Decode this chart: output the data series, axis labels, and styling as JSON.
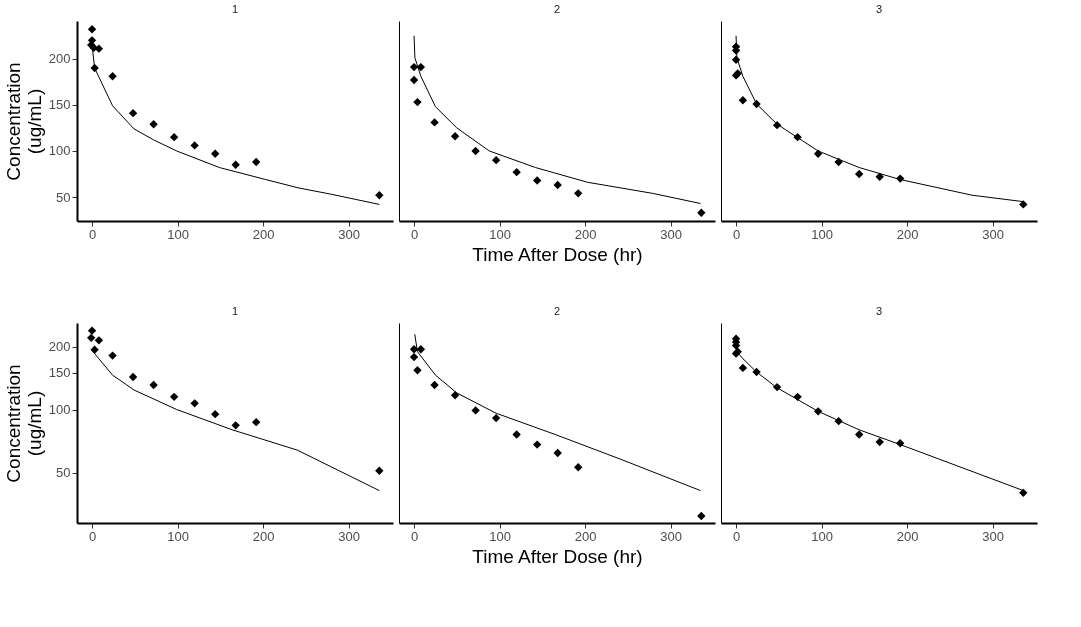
{
  "chart_data": [
    {
      "type": "scatter",
      "title": "1",
      "ylabel": "Concentration (ug/mL)",
      "xlim": [
        -17.6,
        352
      ],
      "xticks": [
        0,
        100,
        200,
        300
      ],
      "ylim": [
        24,
        241
      ],
      "yticks": [
        50,
        100,
        150,
        200
      ],
      "series": [
        {
          "marker": "diamond",
          "color": "#000000",
          "x": [
            0,
            0,
            -1,
            2,
            8,
            3,
            24,
            48,
            72,
            96,
            120,
            144,
            168,
            192,
            336
          ],
          "values": [
            232,
            220,
            215,
            212,
            211,
            190,
            181,
            141,
            129,
            115,
            106,
            97,
            85,
            88,
            52
          ]
        },
        {
          "type": "line",
          "color": "#000000",
          "x": [
            0,
            1,
            3,
            24,
            49,
            72,
            99,
            149,
            203,
            241,
            280,
            336
          ],
          "values": [
            212,
            207,
            190,
            149,
            124,
            112,
            100,
            82,
            69,
            60,
            53,
            42
          ]
        }
      ]
    },
    {
      "type": "scatter",
      "title": "2",
      "xlabel": "Time After Dose (hr)",
      "tick_labels": "x",
      "xlim": [
        -17.6,
        352
      ],
      "xticks": [
        0,
        100,
        200,
        300
      ],
      "ylim": [
        24,
        241
      ],
      "series": [
        {
          "marker": "diamond",
          "color": "#000000",
          "x": [
            0,
            8,
            0,
            4,
            24,
            48,
            72,
            96,
            120,
            144,
            168,
            192,
            336
          ],
          "values": [
            191,
            191,
            177,
            153,
            131,
            116,
            100,
            90,
            77,
            68,
            63,
            54,
            33
          ]
        },
        {
          "type": "line",
          "color": "#000000",
          "x": [
            0,
            1,
            8,
            25,
            50,
            88,
            142,
            203,
            279,
            335
          ],
          "values": [
            225,
            201,
            181,
            148,
            125,
            100,
            82,
            66,
            54,
            43
          ]
        }
      ]
    },
    {
      "type": "scatter",
      "title": "3",
      "tick_labels": "x",
      "xlim": [
        -17.6,
        352
      ],
      "xticks": [
        0,
        100,
        200,
        300
      ],
      "ylim": [
        24,
        241
      ],
      "series": [
        {
          "marker": "diamond",
          "color": "#000000",
          "x": [
            0,
            0,
            0,
            0,
            2,
            8,
            24,
            48,
            72,
            96,
            120,
            144,
            168,
            192,
            336
          ],
          "values": [
            213,
            209,
            199,
            182,
            184,
            155,
            151,
            128,
            115,
            97,
            88,
            75,
            72,
            70,
            42
          ]
        },
        {
          "type": "line",
          "color": "#000000",
          "x": [
            0,
            1,
            8,
            24,
            48,
            96,
            144,
            192,
            276,
            336
          ],
          "values": [
            225,
            201,
            181,
            151,
            129,
            100,
            82,
            69,
            52,
            45
          ]
        }
      ]
    },
    {
      "type": "scatter",
      "title": "1",
      "ylabel": "Concentration (ug/mL)",
      "log": true,
      "xlim": [
        -17.6,
        352
      ],
      "xticks": [
        0,
        100,
        200,
        300
      ],
      "ylim": [
        28.7,
        259
      ],
      "yticks": [
        50,
        100,
        150,
        200
      ],
      "series": [
        {
          "marker": "diamond",
          "color": "#000000",
          "x": [
            0,
            -1,
            3,
            8,
            24,
            48,
            72,
            96,
            120,
            144,
            168,
            192,
            336
          ],
          "values": [
            238,
            220,
            193,
            214,
            181,
            143,
            131,
            115,
            107,
            95,
            84,
            87,
            51
          ]
        },
        {
          "type": "line",
          "color": "#000000",
          "x": [
            0.5,
            3,
            24,
            49,
            99,
            164,
            240,
            336
          ],
          "values": [
            196,
            185,
            146,
            124,
            100,
            80,
            64,
            41
          ]
        }
      ]
    },
    {
      "type": "scatter",
      "title": "2",
      "xlabel": "Time After Dose (hr)",
      "tick_labels": "x",
      "log": true,
      "xlim": [
        -17.6,
        352
      ],
      "xticks": [
        0,
        100,
        200,
        300
      ],
      "ylim": [
        28.7,
        259
      ],
      "series": [
        {
          "marker": "diamond",
          "color": "#000000",
          "x": [
            0,
            8,
            0,
            4,
            24,
            48,
            72,
            96,
            120,
            144,
            168,
            192,
            336
          ],
          "values": [
            194,
            194,
            178,
            154,
            131,
            117,
            99,
            91,
            76,
            68,
            62,
            53,
            31
          ]
        },
        {
          "type": "line",
          "color": "#000000",
          "x": [
            0.8,
            4,
            25,
            50,
            96,
            165,
            241,
            335
          ],
          "values": [
            229,
            189,
            146,
            120,
            96,
            76,
            58,
            41
          ]
        }
      ]
    },
    {
      "type": "scatter",
      "title": "3",
      "tick_labels": "x",
      "log": true,
      "xlim": [
        -17.6,
        352
      ],
      "xticks": [
        0,
        100,
        200,
        300
      ],
      "ylim": [
        28.7,
        259
      ],
      "series": [
        {
          "marker": "diamond",
          "color": "#000000",
          "x": [
            0,
            0,
            0,
            0,
            2,
            8,
            24,
            48,
            72,
            96,
            120,
            144,
            168,
            192,
            336
          ],
          "values": [
            218,
            210,
            202,
            185,
            189,
            158,
            151,
            128,
            115,
            98,
            88,
            76,
            70,
            69,
            40
          ]
        },
        {
          "type": "line",
          "color": "#000000",
          "x": [
            0,
            1,
            8,
            24,
            48,
            96,
            144,
            192,
            336
          ],
          "values": [
            224,
            189,
            175,
            151,
            127,
            98,
            80,
            68,
            41
          ]
        }
      ]
    }
  ]
}
